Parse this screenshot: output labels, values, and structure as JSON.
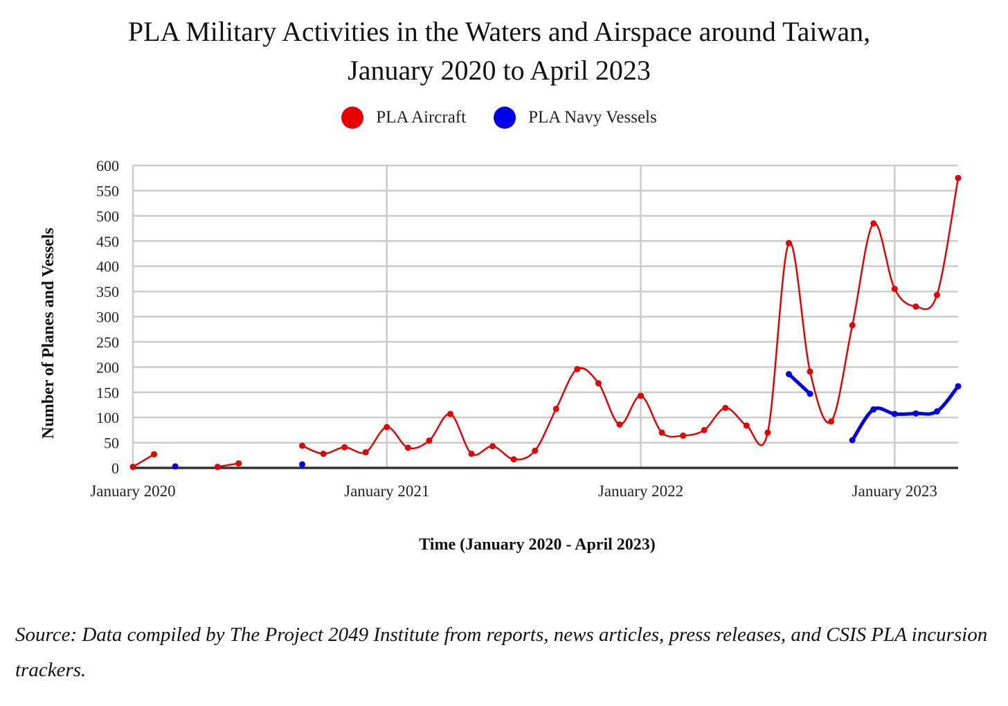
{
  "chart_data": {
    "type": "line",
    "title_lines": [
      "PLA Military Activities in the Waters and Airspace around Taiwan,",
      "January 2020 to April 2023"
    ],
    "xlabel": "Time (January 2020 - April 2023)",
    "ylabel": "Number of Planes and Vessels",
    "ylim": [
      0,
      600
    ],
    "yticks": [
      0,
      50,
      100,
      150,
      200,
      250,
      300,
      350,
      400,
      450,
      500,
      550,
      600
    ],
    "xlim": [
      "2020-01",
      "2023-04"
    ],
    "xticks": [
      {
        "date": "2020-01",
        "label": "January 2020"
      },
      {
        "date": "2021-01",
        "label": "January 2021"
      },
      {
        "date": "2022-01",
        "label": "January 2022"
      },
      {
        "date": "2023-01",
        "label": "January 2023"
      }
    ],
    "grid": true,
    "legend_position": "top",
    "series": [
      {
        "name": "PLA Aircraft",
        "color": "#e60000",
        "segments": [
          [
            {
              "x": "2020-01",
              "y": 2
            },
            {
              "x": "2020-02",
              "y": 27
            }
          ],
          [
            {
              "x": "2020-05",
              "y": 2
            },
            {
              "x": "2020-06",
              "y": 9
            }
          ],
          [
            {
              "x": "2020-09",
              "y": 44
            },
            {
              "x": "2020-10",
              "y": 28
            },
            {
              "x": "2020-11",
              "y": 41
            },
            {
              "x": "2020-12",
              "y": 31
            },
            {
              "x": "2021-01",
              "y": 81
            },
            {
              "x": "2021-02",
              "y": 40
            },
            {
              "x": "2021-03",
              "y": 54
            },
            {
              "x": "2021-04",
              "y": 107
            },
            {
              "x": "2021-05",
              "y": 28
            },
            {
              "x": "2021-06",
              "y": 43
            },
            {
              "x": "2021-07",
              "y": 17
            },
            {
              "x": "2021-08",
              "y": 34
            },
            {
              "x": "2021-09",
              "y": 117
            },
            {
              "x": "2021-10",
              "y": 196
            },
            {
              "x": "2021-11",
              "y": 168
            },
            {
              "x": "2021-12",
              "y": 86
            },
            {
              "x": "2022-01",
              "y": 143
            },
            {
              "x": "2022-02",
              "y": 70
            },
            {
              "x": "2022-03",
              "y": 64
            },
            {
              "x": "2022-04",
              "y": 75
            },
            {
              "x": "2022-05",
              "y": 119
            },
            {
              "x": "2022-06",
              "y": 84
            },
            {
              "x": "2022-07",
              "y": 70
            },
            {
              "x": "2022-08",
              "y": 446
            },
            {
              "x": "2022-09",
              "y": 191
            },
            {
              "x": "2022-10",
              "y": 92
            },
            {
              "x": "2022-11",
              "y": 283
            },
            {
              "x": "2022-12",
              "y": 485
            },
            {
              "x": "2023-01",
              "y": 355
            },
            {
              "x": "2023-02",
              "y": 320
            },
            {
              "x": "2023-03",
              "y": 343
            },
            {
              "x": "2023-04",
              "y": 575
            }
          ]
        ]
      },
      {
        "name": "PLA Navy Vessels",
        "color": "#0000e6",
        "segments": [
          [
            {
              "x": "2020-03",
              "y": 3
            }
          ],
          [
            {
              "x": "2020-09",
              "y": 7
            }
          ],
          [
            {
              "x": "2022-08",
              "y": 186
            },
            {
              "x": "2022-09",
              "y": 147
            }
          ],
          [
            {
              "x": "2022-11",
              "y": 55
            },
            {
              "x": "2022-12",
              "y": 116
            },
            {
              "x": "2023-01",
              "y": 107
            },
            {
              "x": "2023-02",
              "y": 108
            },
            {
              "x": "2023-03",
              "y": 112
            },
            {
              "x": "2023-04",
              "y": 162
            }
          ]
        ]
      }
    ]
  },
  "source_note": "Source: Data compiled by The Project 2049 Institute from reports, news articles, press releases, and CSIS PLA incursion trackers."
}
